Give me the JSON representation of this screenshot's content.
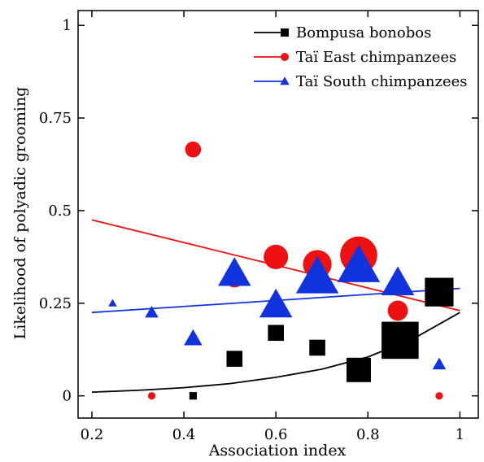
{
  "chart_data": {
    "type": "scatter",
    "title": "",
    "xlabel": "Association index",
    "ylabel": "Likelihood of polyadic grooming",
    "xlim": [
      0.17,
      1.04
    ],
    "ylim": [
      -0.06,
      1.04
    ],
    "xticks": [
      0.2,
      0.4,
      0.6,
      0.8,
      1
    ],
    "xtick_labels": [
      "0.2",
      "0.4",
      "0.6",
      "0.8",
      "1"
    ],
    "yticks": [
      0,
      0.25,
      0.5,
      0.75,
      1
    ],
    "ytick_labels": [
      "0",
      "0.25",
      "0.5",
      "0.75",
      "1"
    ],
    "grid": false,
    "legend_position": "top-right",
    "series": [
      {
        "name": "Bompusa bonobos",
        "color": "#000000",
        "marker": "square",
        "points": [
          {
            "x": 0.42,
            "y": 0.0,
            "size": 1
          },
          {
            "x": 0.51,
            "y": 0.1,
            "size": 3
          },
          {
            "x": 0.6,
            "y": 0.17,
            "size": 3
          },
          {
            "x": 0.69,
            "y": 0.13,
            "size": 3
          },
          {
            "x": 0.78,
            "y": 0.07,
            "size": 5
          },
          {
            "x": 0.87,
            "y": 0.15,
            "size": 8
          },
          {
            "x": 0.955,
            "y": 0.28,
            "size": 6
          }
        ],
        "fit": {
          "type": "exponential",
          "x": [
            0.2,
            0.3,
            0.4,
            0.5,
            0.6,
            0.7,
            0.8,
            0.9,
            1.0
          ],
          "y": [
            0.01,
            0.015,
            0.022,
            0.033,
            0.05,
            0.072,
            0.105,
            0.155,
            0.225
          ]
        }
      },
      {
        "name": "Taï East chimpanzees",
        "color": "#ee1111",
        "marker": "circle",
        "points": [
          {
            "x": 0.33,
            "y": 0.0,
            "size": 1
          },
          {
            "x": 0.42,
            "y": 0.665,
            "size": 3
          },
          {
            "x": 0.51,
            "y": 0.32,
            "size": 4
          },
          {
            "x": 0.6,
            "y": 0.375,
            "size": 5
          },
          {
            "x": 0.69,
            "y": 0.355,
            "size": 6
          },
          {
            "x": 0.78,
            "y": 0.38,
            "size": 8
          },
          {
            "x": 0.865,
            "y": 0.23,
            "size": 4
          },
          {
            "x": 0.955,
            "y": 0.0,
            "size": 1
          }
        ],
        "fit": {
          "type": "linear",
          "x": [
            0.2,
            1.0
          ],
          "y": [
            0.475,
            0.23
          ]
        }
      },
      {
        "name": "Taï South chimpanzees",
        "color": "#1133dd",
        "marker": "triangle",
        "points": [
          {
            "x": 0.245,
            "y": 0.25,
            "size": 1
          },
          {
            "x": 0.33,
            "y": 0.225,
            "size": 2
          },
          {
            "x": 0.42,
            "y": 0.155,
            "size": 3
          },
          {
            "x": 0.51,
            "y": 0.33,
            "size": 6
          },
          {
            "x": 0.6,
            "y": 0.245,
            "size": 6
          },
          {
            "x": 0.69,
            "y": 0.32,
            "size": 8
          },
          {
            "x": 0.78,
            "y": 0.35,
            "size": 8
          },
          {
            "x": 0.865,
            "y": 0.305,
            "size": 6
          },
          {
            "x": 0.955,
            "y": 0.085,
            "size": 2
          }
        ],
        "fit": {
          "type": "linear",
          "x": [
            0.2,
            1.0
          ],
          "y": [
            0.225,
            0.29
          ]
        }
      }
    ]
  }
}
